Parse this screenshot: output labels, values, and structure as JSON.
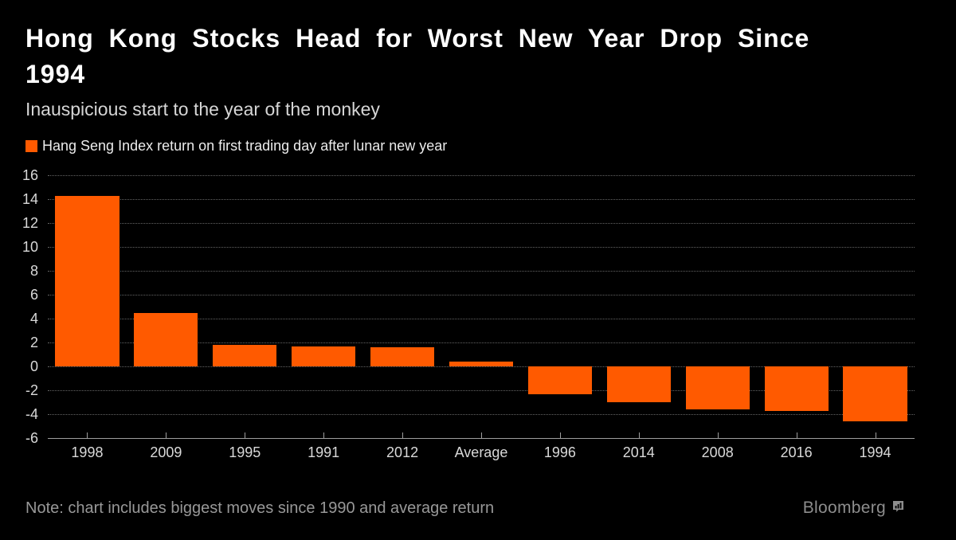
{
  "header": {
    "title": "Hong Kong Stocks Head for Worst New Year Drop Since 1994",
    "subtitle": "Inauspicious start to the year of the monkey"
  },
  "legend": {
    "label": "Hang Seng Index return on first trading day after lunar new year",
    "swatch_color": "#ff5a00"
  },
  "chart_data": {
    "type": "bar",
    "categories": [
      "1998",
      "2009",
      "1995",
      "1991",
      "2012",
      "Average",
      "1996",
      "2014",
      "2008",
      "2016",
      "1994"
    ],
    "values": [
      14.3,
      4.5,
      1.8,
      1.7,
      1.6,
      0.4,
      -2.3,
      -3.0,
      -3.6,
      -3.7,
      -4.6
    ],
    "title": "Hang Seng Index return on first trading day after lunar new year",
    "xlabel": "",
    "ylabel": "",
    "ylim": [
      -6,
      16
    ],
    "yticks": [
      16,
      14,
      12,
      10,
      8,
      6,
      4,
      2,
      0,
      -2,
      -4,
      -6
    ],
    "grid": "horizontal-dotted",
    "legend_position": "top-left",
    "bar_color": "#ff5a00"
  },
  "footer": {
    "note": "Note: chart includes biggest moves since 1990 and average return",
    "brand": "Bloomberg"
  },
  "colors": {
    "background": "#000000",
    "accent_orange": "#ff5a00",
    "gridline": "#646464",
    "axis": "#9e9e9e",
    "text_primary": "#ffffff",
    "text_secondary": "#d9d9d9",
    "text_muted": "#989898"
  }
}
